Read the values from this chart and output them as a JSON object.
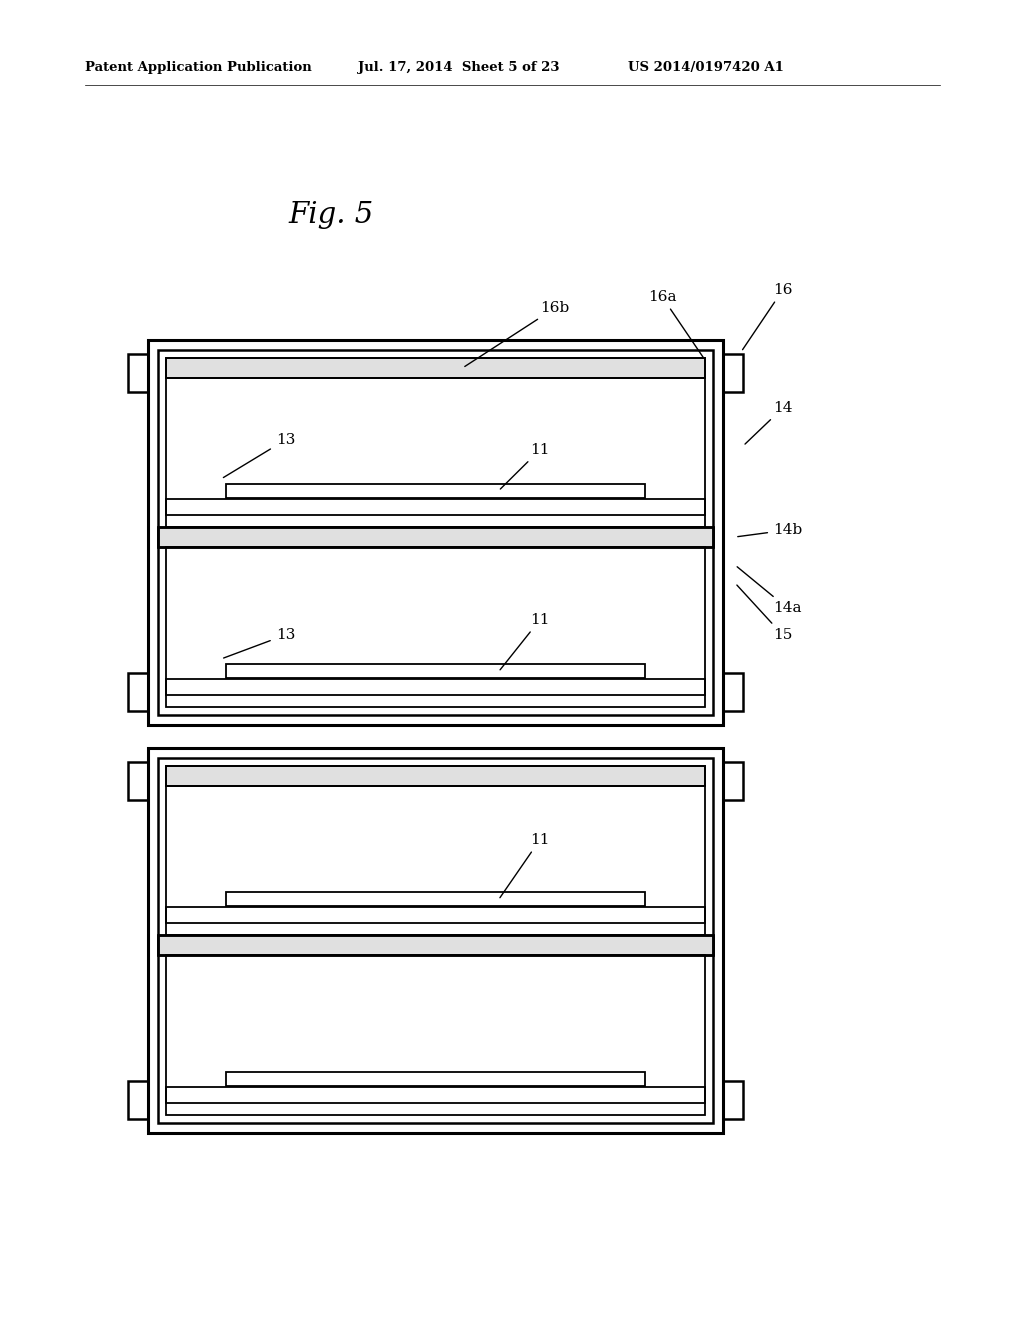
{
  "bg_color": "#ffffff",
  "line_color": "#000000",
  "header_left": "Patent Application Publication",
  "header_mid": "Jul. 17, 2014  Sheet 5 of 23",
  "header_right": "US 2014/0197420 A1",
  "fig_label": "Fig. 5",
  "lw_outer": 2.2,
  "lw_mid": 1.8,
  "lw_inner": 1.3
}
